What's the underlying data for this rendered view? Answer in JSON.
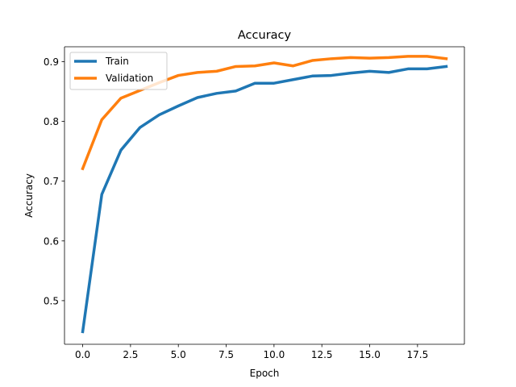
{
  "chart_data": {
    "type": "line",
    "title": "Accuracy",
    "xlabel": "Epoch",
    "ylabel": "Accuracy",
    "xlim": [
      -0.95,
      19.95
    ],
    "ylim": [
      0.427,
      0.925
    ],
    "xticks": [
      0.0,
      2.5,
      5.0,
      7.5,
      10.0,
      12.5,
      15.0,
      17.5
    ],
    "xtick_labels": [
      "0.0",
      "2.5",
      "5.0",
      "7.5",
      "10.0",
      "12.5",
      "15.0",
      "17.5"
    ],
    "yticks": [
      0.5,
      0.6,
      0.7,
      0.8,
      0.9
    ],
    "ytick_labels": [
      "0.5",
      "0.6",
      "0.7",
      "0.8",
      "0.9"
    ],
    "grid": false,
    "legend_position": "top-left",
    "x": [
      0,
      1,
      2,
      3,
      4,
      5,
      6,
      7,
      8,
      9,
      10,
      11,
      12,
      13,
      14,
      15,
      16,
      17,
      18,
      19
    ],
    "series": [
      {
        "name": "Train",
        "color": "#1f77b4",
        "values": [
          0.448,
          0.678,
          0.752,
          0.79,
          0.811,
          0.826,
          0.84,
          0.847,
          0.851,
          0.864,
          0.864,
          0.87,
          0.876,
          0.877,
          0.881,
          0.884,
          0.882,
          0.888,
          0.888,
          0.892
        ]
      },
      {
        "name": "Validation",
        "color": "#ff7f0e",
        "values": [
          0.721,
          0.803,
          0.839,
          0.852,
          0.865,
          0.877,
          0.882,
          0.884,
          0.892,
          0.893,
          0.898,
          0.893,
          0.902,
          0.905,
          0.907,
          0.906,
          0.907,
          0.909,
          0.909,
          0.905
        ]
      }
    ]
  }
}
